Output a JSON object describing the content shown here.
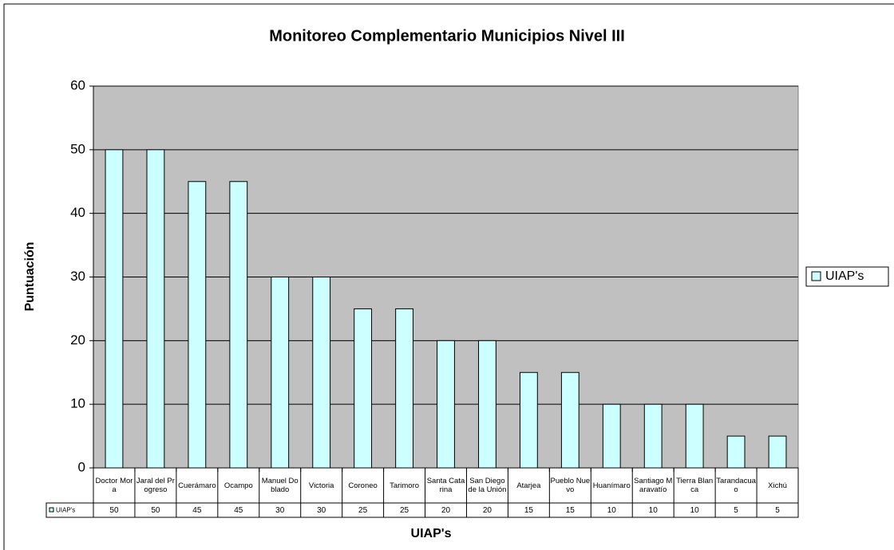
{
  "chart_data": {
    "type": "bar",
    "title": "Monitoreo Complementario Municipios Nivel III",
    "y_label": "Puntuación",
    "x_label": "UIAP's",
    "categories": [
      "Doctor Mora",
      "Jaral del Progreso",
      "Cuerámaro",
      "Ocampo",
      "Manuel Doblado",
      "Victoria",
      "Coroneo",
      "Tarimoro",
      "Santa Catarina",
      "San Diego de la Unión",
      "Atarjea",
      "Pueblo Nuevo",
      "Huanímaro",
      "Santiago Maravatío",
      "Tierra Blanca",
      "Tarandacuao",
      "Xichú"
    ],
    "series": [
      {
        "name": "UIAP's",
        "color": "#ccffff",
        "values": [
          50,
          50,
          45,
          45,
          30,
          30,
          25,
          25,
          20,
          20,
          15,
          15,
          10,
          10,
          10,
          5,
          5
        ]
      }
    ],
    "ylim": [
      0,
      60
    ],
    "yticks": [
      0,
      10,
      20,
      30,
      40,
      50,
      60
    ],
    "grid": true,
    "legend": "right",
    "data_table": true
  }
}
